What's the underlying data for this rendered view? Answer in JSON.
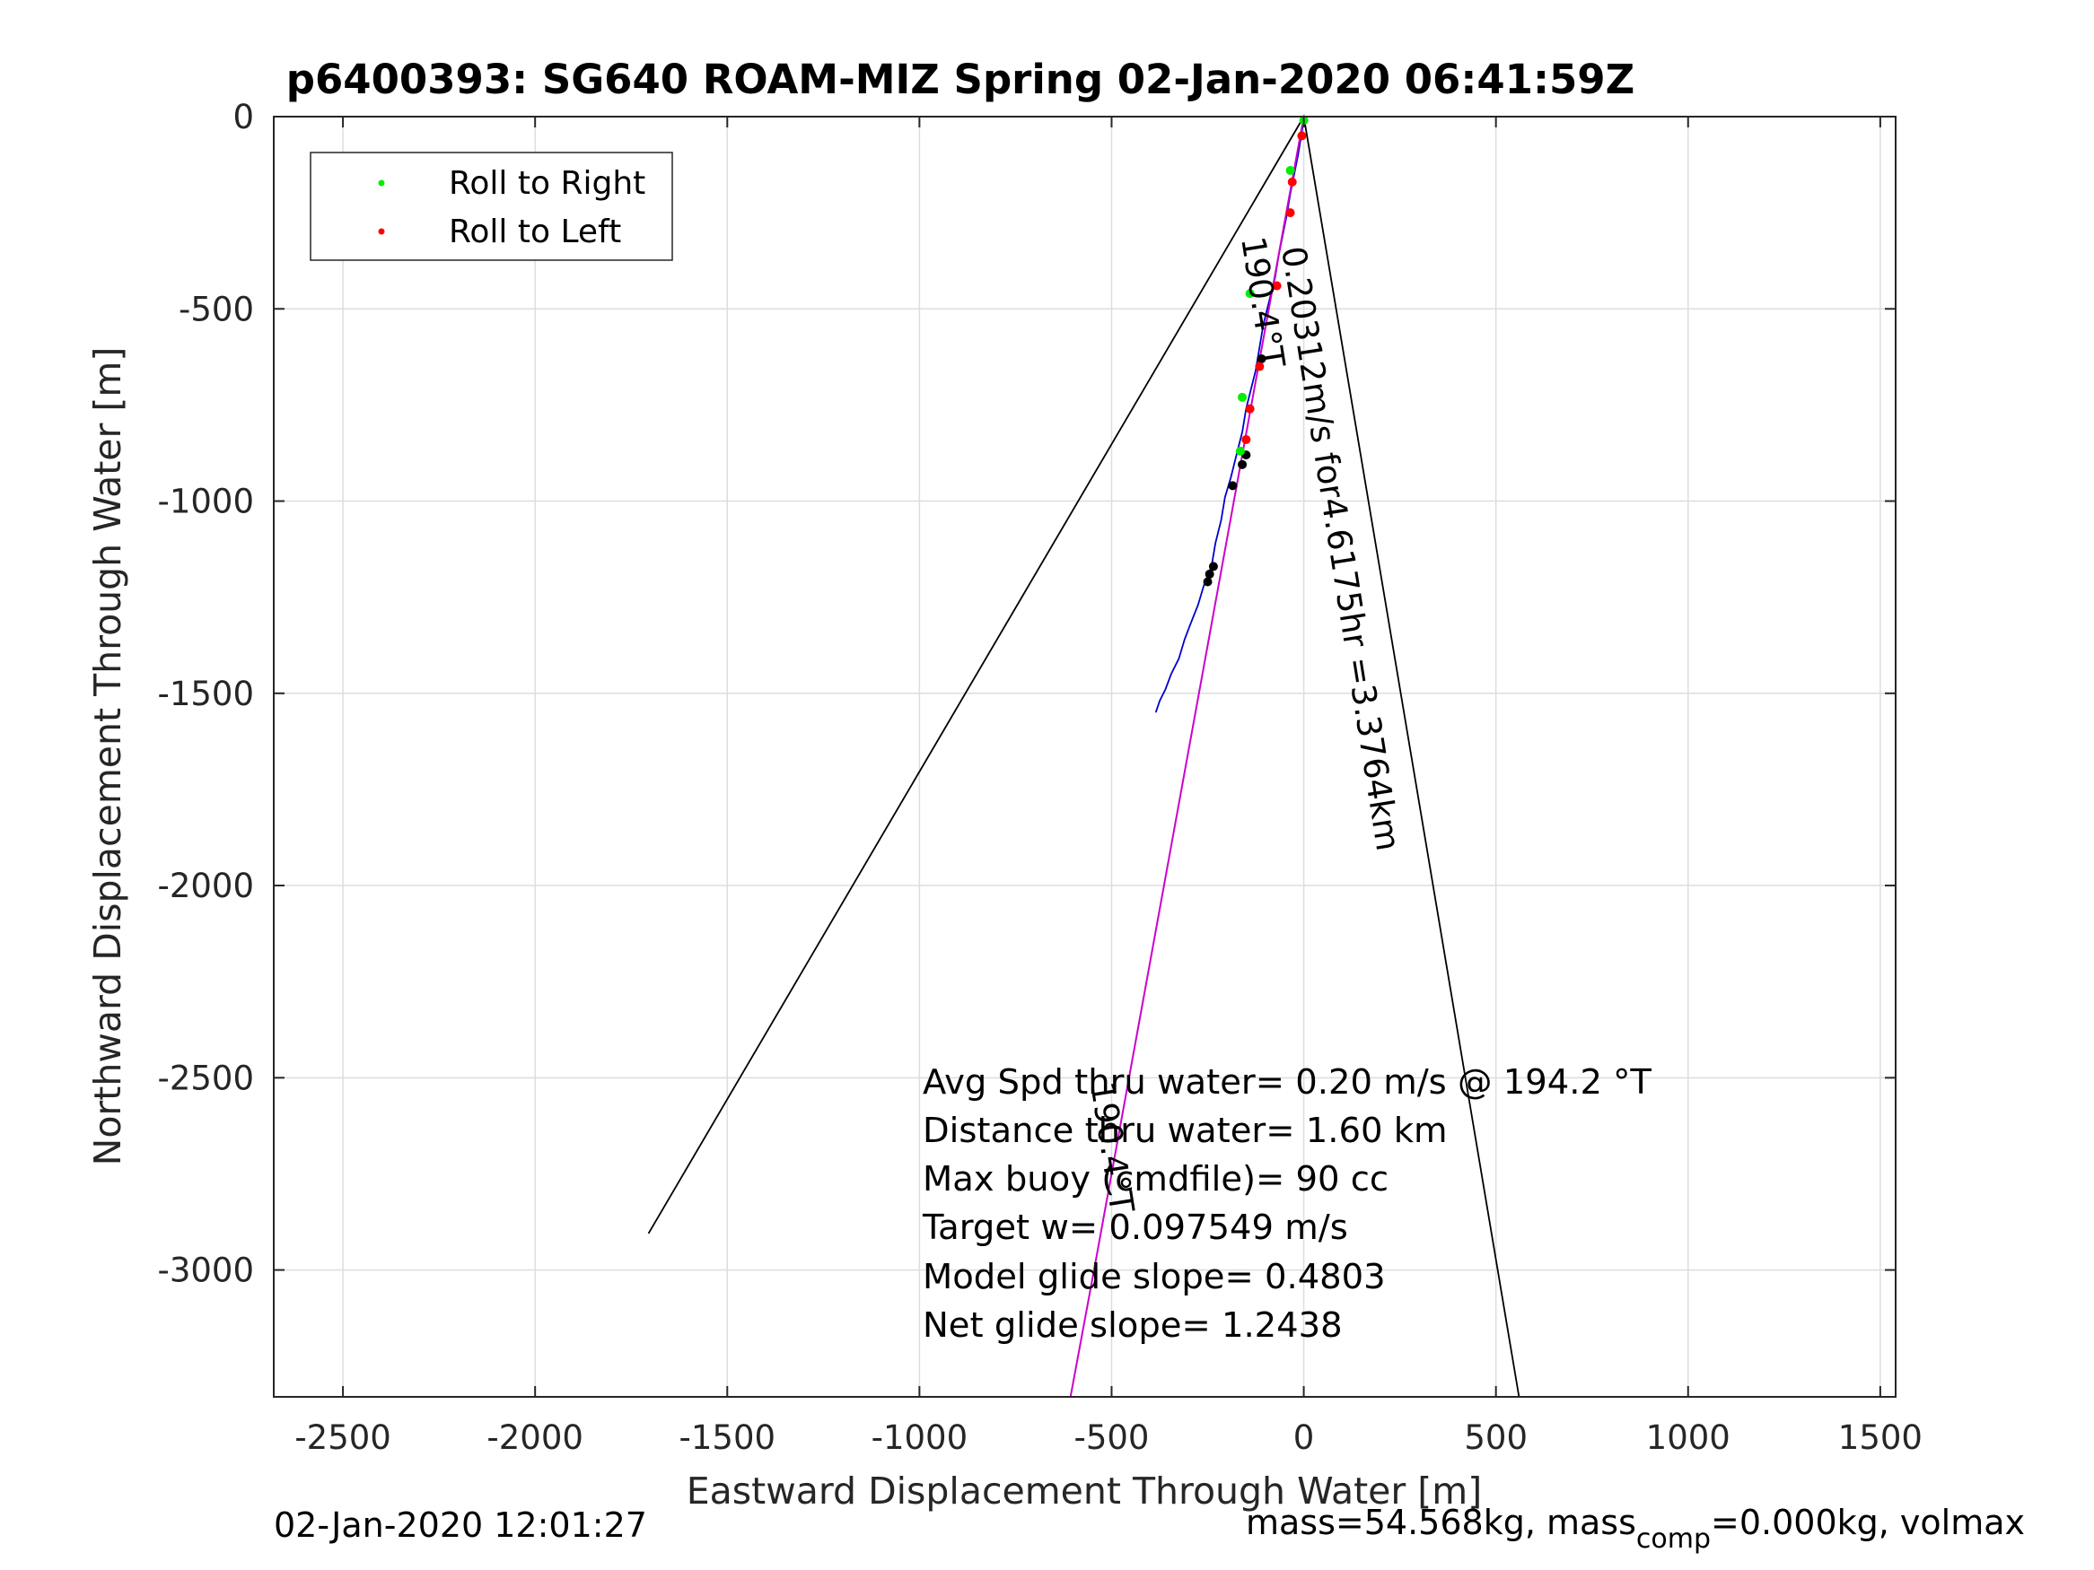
{
  "chart_data": {
    "type": "line",
    "title": "p6400393: SG640 ROAM-MIZ Spring 02-Jan-2020 06:41:59Z",
    "xlabel": "Eastward Displacement Through Water [m]",
    "ylabel": "Northward Displacement Through Water [m]",
    "xlim": [
      -2680,
      1540
    ],
    "ylim": [
      -3330,
      0
    ],
    "xticks": [
      -2500,
      -2000,
      -1500,
      -1000,
      -500,
      0,
      500,
      1000,
      1500
    ],
    "yticks": [
      0,
      -500,
      -1000,
      -1500,
      -2000,
      -2500,
      -3000
    ],
    "grid": true,
    "legend": {
      "position": "top-left",
      "entries": [
        {
          "label": "Roll to Right",
          "color": "#00ee00"
        },
        {
          "label": "Roll to Left",
          "color": "#ff0000"
        }
      ]
    },
    "series": [
      {
        "color": "#0000cc",
        "x": [
          0,
          -5,
          -15,
          -25,
          -35,
          -45,
          -55,
          -65,
          -75,
          -90,
          -105,
          -115,
          -125,
          -140,
          -150,
          -160,
          -175,
          -190,
          -205,
          -215,
          -230,
          -240,
          -260,
          -275,
          -295,
          -310,
          -325,
          -345,
          -360,
          -375,
          -385
        ],
        "y": [
          0,
          -40,
          -100,
          -150,
          -200,
          -260,
          -310,
          -360,
          -420,
          -480,
          -540,
          -600,
          -660,
          -720,
          -760,
          -820,
          -880,
          -940,
          -990,
          -1050,
          -1110,
          -1170,
          -1220,
          -1270,
          -1320,
          -1360,
          -1410,
          -1450,
          -1490,
          -1520,
          -1550
        ]
      },
      {
        "color": "#cc00cc",
        "x": [
          0,
          -60,
          -120,
          -180,
          -240,
          -300,
          -360,
          -420,
          -480,
          -540,
          -607
        ],
        "y": [
          0,
          -330,
          -660,
          -990,
          -1320,
          -1650,
          -1980,
          -2310,
          -2640,
          -2970,
          -3330
        ]
      },
      {
        "color": "#000000",
        "x": [
          -1705,
          0,
          560
        ],
        "y": [
          -2905,
          0,
          -3330
        ]
      }
    ],
    "roll_right": {
      "x": [
        0,
        -35,
        -140,
        -160,
        -165
      ],
      "y": [
        -10,
        -140,
        -460,
        -730,
        -870
      ]
    },
    "roll_left": {
      "x": [
        -5,
        -30,
        -35,
        -70,
        -115,
        -140,
        -150
      ],
      "y": [
        -50,
        -170,
        -250,
        -440,
        -650,
        -760,
        -840
      ]
    },
    "black_markers": {
      "x": [
        -110,
        -150,
        -160,
        -185,
        -235,
        -245,
        -250
      ],
      "y": [
        -630,
        -880,
        -905,
        -960,
        -1170,
        -1190,
        -1210
      ]
    },
    "annotations": [
      {
        "text": "0.20312m/s for4.6175hr =3.3764km"
      },
      {
        "text": "190.4°T"
      },
      {
        "text": "190.4°T"
      }
    ],
    "stats": [
      "Avg Spd thru water=  0.20 m/s @ 194.2 °T",
      "Distance thru water=  1.60 km",
      "Max buoy (cmdfile)= 90 cc",
      "Target w= 0.097549 m/s",
      "Model glide slope= 0.4803",
      "Net glide slope= 1.2438"
    ]
  },
  "footer": {
    "timestamp": "02-Jan-2020 12:01:27",
    "mass_prefix": "mass=54.568kg, mass",
    "mass_sub": "comp",
    "mass_suffix": "=0.000kg, volmax"
  }
}
